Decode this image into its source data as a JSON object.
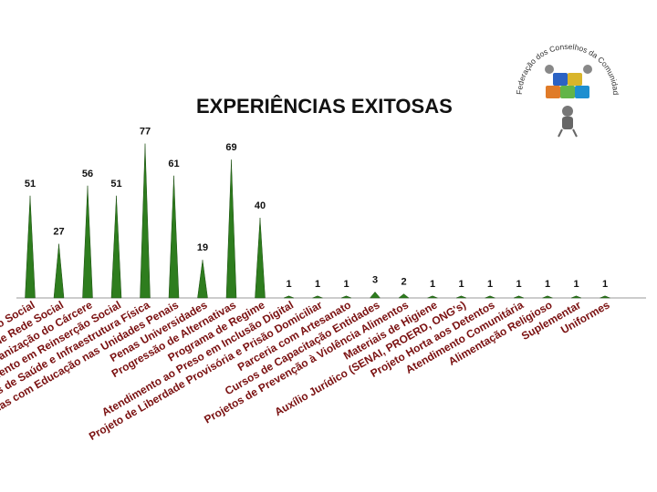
{
  "title": "EXPERIÊNCIAS EXITOSAS",
  "logo": {
    "text": "Federação dos Conselhos da Comunidade do Paraná",
    "icon": "puzzle-people-icon"
  },
  "colors": {
    "bar": "#2e7d1e",
    "bar_dark": "#1b4d10",
    "category_text": "#7a1010",
    "value_text": "#111111"
  },
  "chart_data": {
    "type": "bar",
    "title": "EXPERIÊNCIAS EXITOSAS",
    "categories": [
      "Projetos de Reinserção Social",
      "Implementação de Rede Social",
      "Humanização do Cárcere",
      "Investimento em Reinserção Social",
      "Projetos de Saúde e Infraestrutura Física",
      "Parcerias com Educação nas Unidades Penais",
      "Penas Universidades",
      "Progressão de Alternativas",
      "Programa de Regime",
      "Atendimento ao Preso em Inclusão Digital",
      "Projeto de Liberdade Provisória e Prisão Domiciliar",
      "Parceria com Artesanato",
      "Cursos de Capacitação Entidades",
      "Projetos de Prevenção à Violência Alimentos",
      "Materiais de Higiene",
      "Auxílio Jurídico (SENAI, PROERD, ONG's)",
      "Projeto Horta aos Detentos",
      "Atendimento Comunitária",
      "Alimentação Religioso",
      "Suplementar",
      "Uniformes"
    ],
    "values": [
      51,
      27,
      56,
      51,
      77,
      61,
      19,
      69,
      40,
      1,
      1,
      1,
      3,
      2,
      1,
      1,
      1,
      1,
      1,
      1,
      1
    ],
    "ylim": [
      0,
      80
    ],
    "grid": false,
    "legend": "none"
  }
}
